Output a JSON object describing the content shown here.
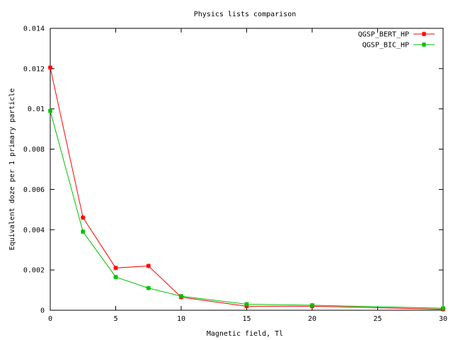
{
  "chart_data": {
    "type": "line",
    "title": "Physics lists comparison",
    "xlabel": "Magnetic field, Tl",
    "ylabel": "Equivalent doze per 1 primary particle",
    "xlim": [
      0,
      30
    ],
    "ylim": [
      0,
      0.014
    ],
    "xticks": [
      0,
      5,
      10,
      15,
      20,
      25,
      30
    ],
    "xtick_labels": [
      "0",
      "5",
      "10",
      "15",
      "20",
      "25",
      "30"
    ],
    "yticks": [
      0,
      0.002,
      0.004,
      0.006,
      0.008,
      0.01,
      0.012,
      0.014
    ],
    "ytick_labels": [
      "0",
      "0.002",
      "0.004",
      "0.006",
      "0.008",
      "0.01",
      "0.012",
      "0.014"
    ],
    "grid": false,
    "legend_position": "top-right",
    "series": [
      {
        "name": "QGSP_BERT_HP",
        "color": "#ff0000",
        "x": [
          0,
          2.5,
          5,
          7.5,
          10,
          15,
          20,
          30
        ],
        "y": [
          0.01205,
          0.0046,
          0.0021,
          0.0022,
          0.00065,
          0.0002,
          0.0002,
          5e-05
        ]
      },
      {
        "name": "QGSP_BIC_HP",
        "color": "#00c000",
        "x": [
          0,
          2.5,
          5,
          7.5,
          10,
          15,
          20,
          30
        ],
        "y": [
          0.0099,
          0.0039,
          0.00165,
          0.0011,
          0.0007,
          0.0003,
          0.00025,
          0.0001
        ]
      }
    ]
  }
}
